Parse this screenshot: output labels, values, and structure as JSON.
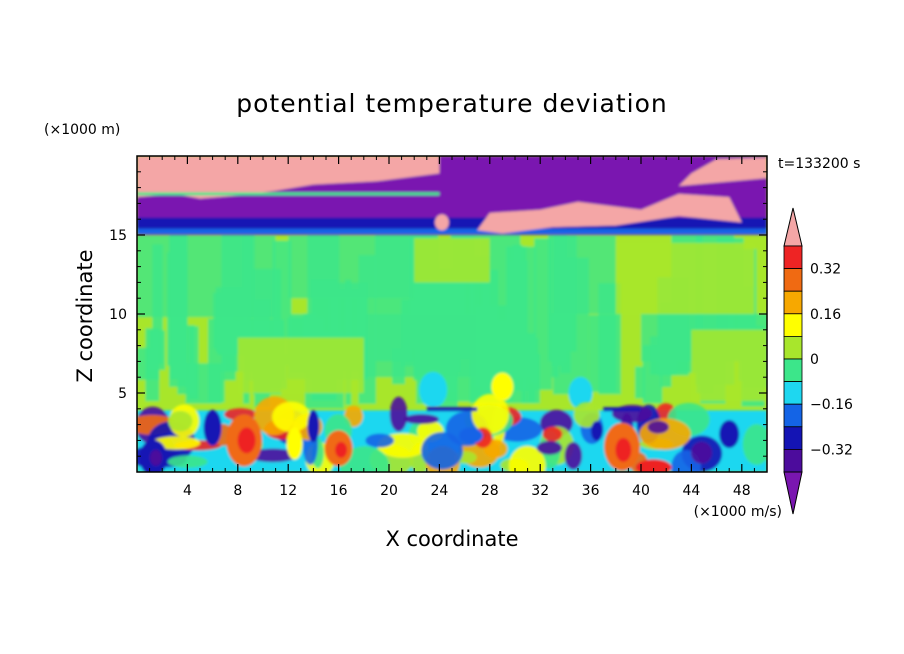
{
  "chart_data": {
    "type": "heatmap",
    "title": "potential temperature deviation",
    "xlabel": "X coordinate",
    "ylabel": "Z coordinate",
    "x_unit": "(×1000 m/s)",
    "y_unit": "(×1000 m)",
    "time_label": "t=133200 s",
    "xlim": [
      0,
      50
    ],
    "ylim": [
      0,
      20
    ],
    "x_ticks": [
      4,
      8,
      12,
      16,
      20,
      24,
      28,
      32,
      36,
      40,
      44,
      48
    ],
    "y_ticks": [
      5,
      10,
      15
    ],
    "colorbar": {
      "levels": [
        -0.4,
        -0.32,
        -0.24,
        -0.16,
        -0.08,
        0,
        0.08,
        0.16,
        0.24,
        0.32,
        0.4
      ],
      "labeled_levels": [
        "0.32",
        "0.16",
        "0",
        "−0.16",
        "−0.32"
      ],
      "colors_top_to_bottom": [
        "#f4a6a6",
        "#ee2424",
        "#f06a12",
        "#f7a800",
        "#ffff00",
        "#a8e62c",
        "#3ce68a",
        "#1ed7f0",
        "#1464e6",
        "#1414b4",
        "#4c0c9c",
        "#7a16b0"
      ],
      "extend": "both"
    }
  }
}
